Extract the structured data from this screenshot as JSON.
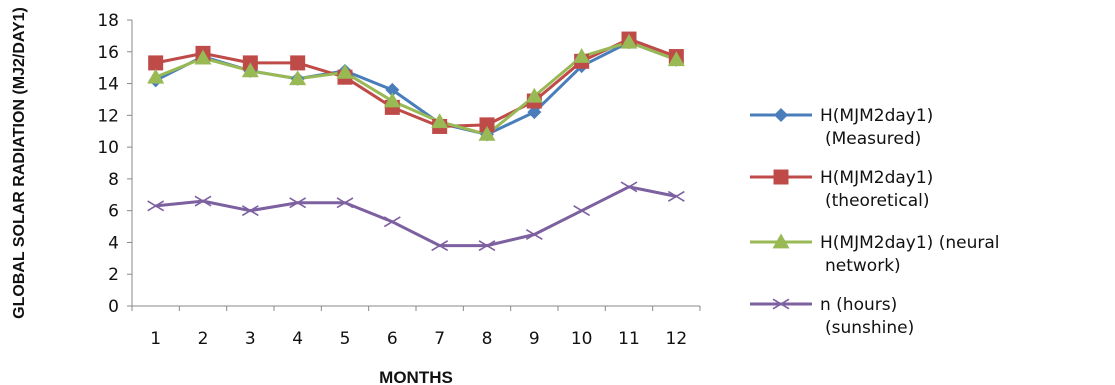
{
  "chart_data": {
    "type": "line",
    "title": "",
    "xlabel": "MONTHS",
    "ylabel": "GLOBAL SOLAR RADIATION (MJ2/DAY1)",
    "categories": [
      "1",
      "2",
      "3",
      "4",
      "5",
      "6",
      "7",
      "8",
      "9",
      "10",
      "11",
      "12"
    ],
    "ylim": [
      0,
      18
    ],
    "yticks": [
      "0",
      "2",
      "4",
      "6",
      "8",
      "10",
      "12",
      "14",
      "16",
      "18"
    ],
    "grid": false,
    "legend_position": "right",
    "series": [
      {
        "legend_line1": "H(MJM2day1)",
        "legend_line2": "(Measured)",
        "color": "#4a7ebb",
        "marker": "diamond",
        "values": [
          14.2,
          15.7,
          14.8,
          14.3,
          14.8,
          13.6,
          11.5,
          10.8,
          12.2,
          15.1,
          16.6,
          15.5
        ]
      },
      {
        "legend_line1": "H(MJM2day1)",
        "legend_line2": "(theoretical)",
        "color": "#be4b48",
        "marker": "square",
        "values": [
          15.3,
          15.9,
          15.3,
          15.3,
          14.4,
          12.5,
          11.3,
          11.4,
          12.9,
          15.4,
          16.8,
          15.7
        ]
      },
      {
        "legend_line1": "H(MJM2day1) (neural",
        "legend_line2": "network)",
        "color": "#98b954",
        "marker": "triangle",
        "values": [
          14.4,
          15.6,
          14.8,
          14.3,
          14.7,
          12.9,
          11.6,
          10.8,
          13.2,
          15.7,
          16.6,
          15.5
        ]
      },
      {
        "legend_line1": "n (hours)",
        "legend_line2": "(sunshine)",
        "color": "#7d60a0",
        "marker": "x",
        "values": [
          6.3,
          6.6,
          6.0,
          6.5,
          6.5,
          5.3,
          3.8,
          3.8,
          4.5,
          6.0,
          7.5,
          6.9
        ]
      }
    ]
  }
}
